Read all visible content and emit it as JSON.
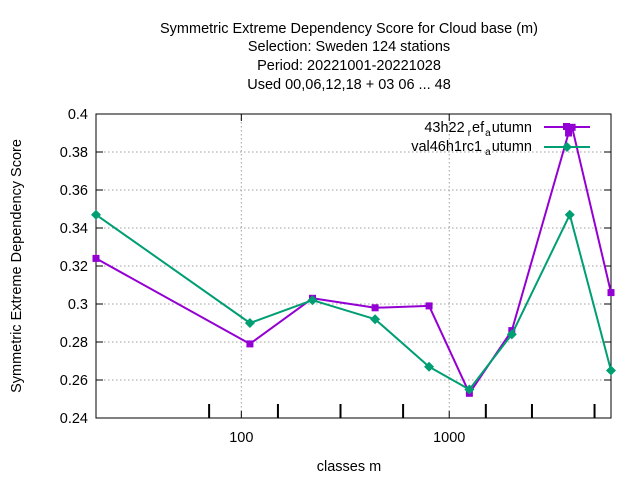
{
  "chart_data": {
    "type": "line",
    "title_lines": [
      "Symmetric Extreme Dependency Score  for Cloud base (m)",
      "Selection: Sweden    124 stations",
      "Period: 20221001-20221028",
      "Used  00,06,12,18  + 03 06 ... 48"
    ],
    "xlabel": "classes m",
    "ylabel": "Symmetric Extreme Dependency Score",
    "x_scale": "log",
    "xlim": [
      20,
      6000
    ],
    "ylim": [
      0.24,
      0.4
    ],
    "x_ticks": [
      100,
      1000
    ],
    "x_tick_labels": [
      "100",
      "1000"
    ],
    "y_ticks": [
      0.24,
      0.26,
      0.28,
      0.3,
      0.32,
      0.34,
      0.36,
      0.38,
      0.4
    ],
    "y_tick_labels": [
      "0.24",
      "0.26",
      "0.28",
      "0.3",
      "0.32",
      "0.34",
      "0.36",
      "0.38",
      "0.4"
    ],
    "x_minor_ticks": [
      70,
      150,
      300,
      600,
      1500,
      2500,
      5000
    ],
    "grid": true,
    "legend_position": "top-right",
    "x": [
      20,
      110,
      220,
      440,
      800,
      1250,
      2000,
      3800,
      6000
    ],
    "series": [
      {
        "name_main": "43h22",
        "name_sub1": "r",
        "name_mid": "ef",
        "name_sub2": "a",
        "name_tail": "utumn",
        "color": "#9400d3",
        "marker": "square",
        "x": [
          20,
          110,
          220,
          440,
          800,
          1250,
          2000,
          3750,
          3900,
          6000
        ],
        "values": [
          0.324,
          0.279,
          0.303,
          0.298,
          0.299,
          0.253,
          0.286,
          0.39,
          0.393,
          0.306
        ]
      },
      {
        "name_main": "val46h1rc1",
        "name_sub1": "",
        "name_mid": "",
        "name_sub2": "a",
        "name_tail": "utumn",
        "color": "#009e73",
        "marker": "diamond",
        "x": [
          20,
          110,
          220,
          440,
          800,
          1250,
          2000,
          3800,
          6000
        ],
        "values": [
          0.347,
          0.29,
          0.302,
          0.292,
          0.267,
          0.255,
          0.284,
          0.347,
          0.265
        ]
      }
    ]
  }
}
